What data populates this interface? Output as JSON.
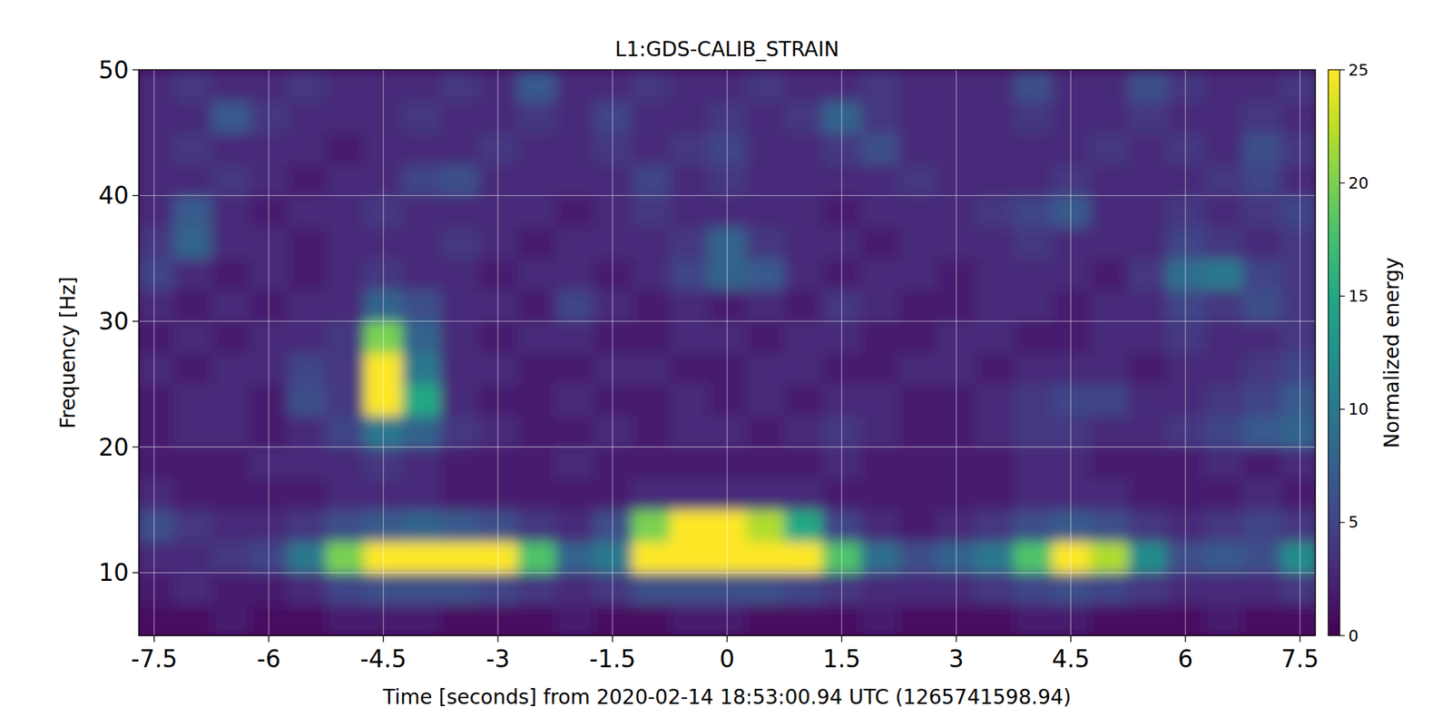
{
  "chart_data": {
    "type": "heatmap",
    "title": "L1:GDS-CALIB_STRAIN",
    "x_label": "Time [seconds] from 2020-02-14 18:53:00.94 UTC (1265741598.94)",
    "y_label": "Frequency [Hz]",
    "xlim": [
      -7.7,
      7.7
    ],
    "ylim": [
      5,
      50
    ],
    "xticks": [
      -7.5,
      -6,
      -4.5,
      -3,
      -1.5,
      0,
      1.5,
      3,
      4.5,
      6,
      7.5
    ],
    "yticks": [
      10,
      20,
      30,
      40,
      50
    ],
    "grid": true,
    "colorbar": {
      "label": "Normalized energy",
      "lim": [
        0,
        25
      ],
      "ticks": [
        0,
        5,
        10,
        15,
        20,
        25
      ]
    },
    "x": [
      -7.5,
      -7,
      -6.5,
      -6,
      -5.5,
      -5,
      -4.5,
      -4,
      -3.5,
      -3,
      -2.5,
      -2,
      -1.5,
      -1,
      -0.5,
      0,
      0.5,
      1,
      1.5,
      2,
      2.5,
      3,
      3.5,
      4,
      4.5,
      5,
      5.5,
      6,
      6.5,
      7,
      7.5
    ],
    "y": [
      6.25,
      8.75,
      11.25,
      13.75,
      16.25,
      18.75,
      21.25,
      23.75,
      26.25,
      28.75,
      31.25,
      33.75,
      36.25,
      38.75,
      41.25,
      43.75,
      46.25,
      48.75
    ],
    "z": [
      [
        1,
        1,
        2,
        1,
        1,
        2,
        2,
        2,
        1,
        1,
        1,
        2,
        1,
        1,
        2,
        2,
        1,
        1,
        1,
        2,
        1,
        1,
        1,
        2,
        2,
        1,
        1,
        1,
        2,
        1,
        1
      ],
      [
        2,
        3,
        2,
        2,
        3,
        5,
        6,
        6,
        6,
        5,
        4,
        3,
        4,
        6,
        6,
        6,
        6,
        5,
        4,
        3,
        3,
        3,
        4,
        5,
        6,
        5,
        4,
        3,
        3,
        3,
        4
      ],
      [
        3,
        3,
        4,
        5,
        10,
        20,
        25,
        25,
        25,
        25,
        18,
        8,
        10,
        25,
        25,
        25,
        25,
        25,
        18,
        9,
        6,
        8,
        10,
        18,
        25,
        22,
        12,
        6,
        7,
        6,
        12
      ],
      [
        6,
        4,
        3,
        3,
        4,
        6,
        7,
        8,
        7,
        6,
        4,
        3,
        6,
        20,
        25,
        25,
        22,
        15,
        5,
        3,
        2,
        3,
        4,
        6,
        7,
        6,
        4,
        3,
        4,
        5,
        4
      ],
      [
        3,
        2,
        2,
        2,
        2,
        3,
        3,
        3,
        2,
        2,
        2,
        2,
        2,
        3,
        3,
        3,
        3,
        3,
        2,
        2,
        2,
        2,
        2,
        3,
        3,
        3,
        2,
        2,
        2,
        3,
        2
      ],
      [
        2,
        2,
        2,
        3,
        3,
        3,
        4,
        3,
        2,
        2,
        2,
        3,
        2,
        2,
        2,
        2,
        2,
        2,
        3,
        2,
        2,
        2,
        2,
        3,
        3,
        2,
        2,
        2,
        3,
        2,
        3
      ],
      [
        2,
        3,
        3,
        2,
        3,
        5,
        10,
        8,
        4,
        3,
        2,
        2,
        3,
        2,
        3,
        3,
        2,
        3,
        4,
        3,
        2,
        2,
        3,
        4,
        4,
        3,
        3,
        4,
        5,
        7,
        8
      ],
      [
        2,
        3,
        3,
        2,
        6,
        4,
        25,
        15,
        3,
        2,
        2,
        3,
        2,
        2,
        3,
        2,
        3,
        2,
        3,
        3,
        2,
        2,
        3,
        4,
        5,
        5,
        3,
        3,
        4,
        5,
        7
      ],
      [
        3,
        2,
        3,
        3,
        5,
        4,
        25,
        10,
        3,
        3,
        2,
        2,
        3,
        3,
        2,
        2,
        3,
        3,
        2,
        2,
        3,
        3,
        2,
        3,
        3,
        3,
        2,
        3,
        3,
        4,
        5
      ],
      [
        2,
        3,
        2,
        3,
        3,
        4,
        20,
        8,
        3,
        2,
        3,
        3,
        2,
        2,
        3,
        3,
        2,
        3,
        3,
        2,
        2,
        3,
        3,
        2,
        2,
        3,
        3,
        4,
        3,
        3,
        4
      ],
      [
        3,
        2,
        3,
        2,
        3,
        3,
        8,
        6,
        3,
        3,
        2,
        5,
        3,
        2,
        3,
        2,
        3,
        2,
        4,
        3,
        2,
        2,
        3,
        3,
        2,
        3,
        3,
        5,
        4,
        6,
        4
      ],
      [
        5,
        3,
        2,
        3,
        2,
        3,
        4,
        3,
        3,
        2,
        3,
        3,
        2,
        3,
        5,
        8,
        7,
        3,
        2,
        3,
        3,
        2,
        3,
        3,
        3,
        2,
        4,
        9,
        10,
        5,
        4
      ],
      [
        4,
        8,
        3,
        3,
        2,
        3,
        3,
        3,
        4,
        3,
        2,
        3,
        3,
        3,
        4,
        8,
        4,
        3,
        3,
        2,
        3,
        3,
        3,
        4,
        3,
        3,
        3,
        5,
        4,
        3,
        4
      ],
      [
        3,
        7,
        3,
        2,
        3,
        3,
        4,
        3,
        3,
        3,
        3,
        2,
        3,
        4,
        3,
        3,
        3,
        3,
        2,
        3,
        3,
        3,
        4,
        5,
        7,
        3,
        3,
        4,
        3,
        4,
        5
      ],
      [
        3,
        3,
        4,
        3,
        2,
        3,
        3,
        5,
        6,
        3,
        3,
        3,
        3,
        5,
        3,
        4,
        3,
        3,
        3,
        3,
        4,
        3,
        3,
        3,
        4,
        3,
        3,
        3,
        4,
        5,
        3
      ],
      [
        3,
        4,
        3,
        3,
        3,
        2,
        3,
        3,
        3,
        4,
        3,
        3,
        4,
        3,
        4,
        5,
        3,
        3,
        4,
        6,
        3,
        3,
        3,
        3,
        3,
        4,
        3,
        4,
        3,
        6,
        4
      ],
      [
        3,
        3,
        7,
        4,
        3,
        3,
        3,
        4,
        3,
        3,
        4,
        3,
        5,
        3,
        3,
        4,
        3,
        4,
        8,
        4,
        3,
        3,
        3,
        4,
        3,
        3,
        4,
        3,
        3,
        4,
        3
      ],
      [
        3,
        4,
        3,
        3,
        4,
        3,
        3,
        3,
        4,
        3,
        7,
        3,
        3,
        4,
        3,
        3,
        4,
        3,
        3,
        4,
        3,
        3,
        3,
        6,
        3,
        3,
        6,
        4,
        3,
        3,
        4
      ]
    ]
  }
}
